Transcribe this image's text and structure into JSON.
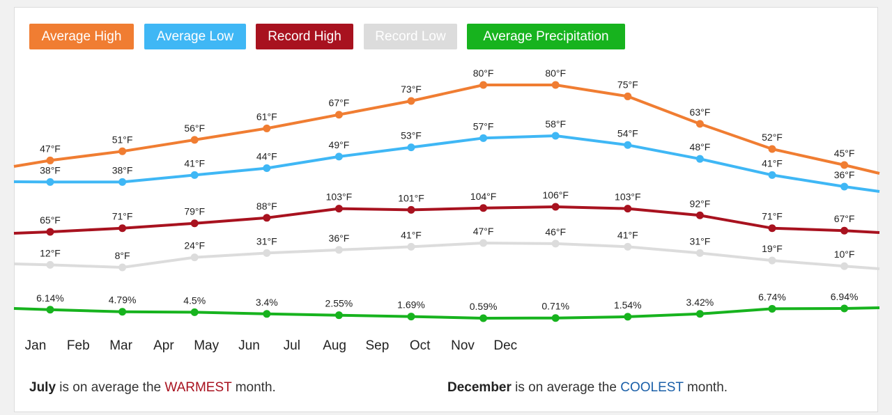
{
  "legend": [
    {
      "label": "Average High",
      "color": "#f07d32"
    },
    {
      "label": "Average Low",
      "color": "#3fb7f5"
    },
    {
      "label": "Record High",
      "color": "#a8121f"
    },
    {
      "label": "Record Low",
      "color": "#dcdcdc"
    },
    {
      "label": "Average Precipitation",
      "color": "#17b31e"
    }
  ],
  "chart_data": {
    "type": "line",
    "x": [
      "Jan",
      "Feb",
      "Mar",
      "Apr",
      "May",
      "Jun",
      "Jul",
      "Aug",
      "Sep",
      "Oct",
      "Nov",
      "Dec"
    ],
    "grid": false,
    "legend_position": "top-left",
    "series": [
      {
        "name": "Average High",
        "color": "#f07d32",
        "values": [
          47,
          51,
          56,
          61,
          67,
          73,
          80,
          80,
          75,
          63,
          52,
          45
        ],
        "labels": [
          "47°F",
          "51°F",
          "56°F",
          "61°F",
          "67°F",
          "73°F",
          "80°F",
          "80°F",
          "75°F",
          "63°F",
          "52°F",
          "45°F"
        ]
      },
      {
        "name": "Average Low",
        "color": "#3fb7f5",
        "values": [
          38,
          38,
          41,
          44,
          49,
          53,
          57,
          58,
          54,
          48,
          41,
          36
        ],
        "labels": [
          "38°F",
          "38°F",
          "41°F",
          "44°F",
          "49°F",
          "53°F",
          "57°F",
          "58°F",
          "54°F",
          "48°F",
          "41°F",
          "36°F"
        ]
      },
      {
        "name": "Record High",
        "color": "#a8121f",
        "values": [
          65,
          71,
          79,
          88,
          103,
          101,
          104,
          106,
          103,
          92,
          71,
          67
        ],
        "labels": [
          "65°F",
          "71°F",
          "79°F",
          "88°F",
          "103°F",
          "101°F",
          "104°F",
          "106°F",
          "103°F",
          "92°F",
          "71°F",
          "67°F"
        ]
      },
      {
        "name": "Record Low",
        "color": "#dcdcdc",
        "values": [
          12,
          8,
          24,
          31,
          36,
          41,
          47,
          46,
          41,
          31,
          19,
          10
        ],
        "labels": [
          "12°F",
          "8°F",
          "24°F",
          "31°F",
          "36°F",
          "41°F",
          "47°F",
          "46°F",
          "41°F",
          "31°F",
          "19°F",
          "10°F"
        ]
      },
      {
        "name": "Average Precipitation",
        "color": "#17b31e",
        "values": [
          6.14,
          4.79,
          4.5,
          3.4,
          2.55,
          1.69,
          0.59,
          0.71,
          1.54,
          3.42,
          6.74,
          6.94
        ],
        "labels": [
          "6.14%",
          "4.79%",
          "4.5%",
          "3.4%",
          "2.55%",
          "1.69%",
          "0.59%",
          "0.71%",
          "1.54%",
          "3.42%",
          "6.74%",
          "6.94%"
        ]
      }
    ]
  },
  "summary": {
    "warm_month": "July",
    "warm_text1": " is on average the ",
    "warm_word": "WARMEST",
    "warm_text2": " month.",
    "warm_color": "#a8121f",
    "cool_month": "December",
    "cool_text1": " is on average the ",
    "cool_word": "COOLEST",
    "cool_text2": " month.",
    "cool_color": "#1a5fa8"
  }
}
